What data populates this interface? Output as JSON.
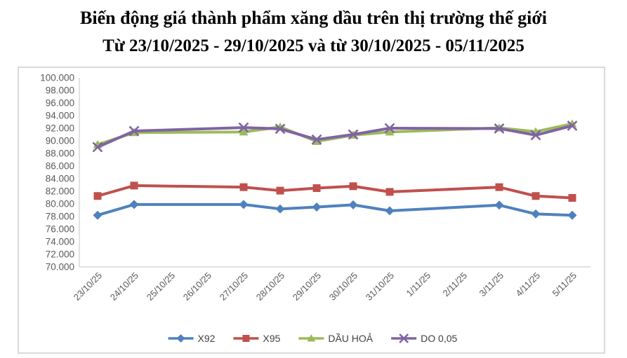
{
  "chart_data": {
    "type": "line",
    "title": "Biến động giá thành phẩm xăng dầu trên thị trường thế giới",
    "subtitle": "Từ 23/10/2025 - 29/10/2025 và từ 30/10/2025 - 05/11/2025",
    "categories": [
      "23/10/25",
      "24/10/25",
      "25/10/25",
      "26/10/25",
      "27/10/25",
      "28/10/25",
      "29/10/25",
      "30/10/25",
      "31/10/25",
      "1/11/25",
      "2/11/25",
      "3/11/25",
      "4/11/25",
      "5/11/25"
    ],
    "y_axis": {
      "min": 70000,
      "max": 100000,
      "step": 2000,
      "tick_labels": [
        "100.000",
        "98.000",
        "96.000",
        "94.000",
        "92.000",
        "90.000",
        "88.000",
        "86.000",
        "84.000",
        "82.000",
        "80.000",
        "78.000",
        "76.000",
        "74.000",
        "72.000",
        "70.000"
      ]
    },
    "grid": false,
    "legend_position": "bottom",
    "series": [
      {
        "name": "X92",
        "color": "#4F81BD",
        "marker": "diamond",
        "values": [
          78200,
          79900,
          null,
          null,
          79900,
          79200,
          79500,
          79850,
          78900,
          null,
          null,
          79800,
          78400,
          78200
        ]
      },
      {
        "name": "X95",
        "color": "#C0504D",
        "marker": "square",
        "values": [
          81250,
          82900,
          null,
          null,
          82650,
          82100,
          82500,
          82800,
          81900,
          null,
          null,
          82650,
          81250,
          80950
        ]
      },
      {
        "name": "DẦU HOẢ",
        "color": "#9BBB59",
        "marker": "triangle",
        "values": [
          89400,
          91300,
          null,
          null,
          91400,
          92200,
          89900,
          90900,
          91400,
          null,
          null,
          92050,
          91450,
          92700
        ]
      },
      {
        "name": "DO 0,05",
        "color": "#8064A2",
        "marker": "x",
        "values": [
          89000,
          91550,
          null,
          null,
          92100,
          91900,
          90200,
          91000,
          92000,
          null,
          null,
          91950,
          90900,
          92400
        ]
      }
    ],
    "colors": {
      "frame_border": "#D9D9D9",
      "axis_line": "#D9D9D9",
      "tick_label": "#595959",
      "legend_text": "#404040",
      "background": "#ffffff",
      "title_text": "#000000"
    }
  }
}
